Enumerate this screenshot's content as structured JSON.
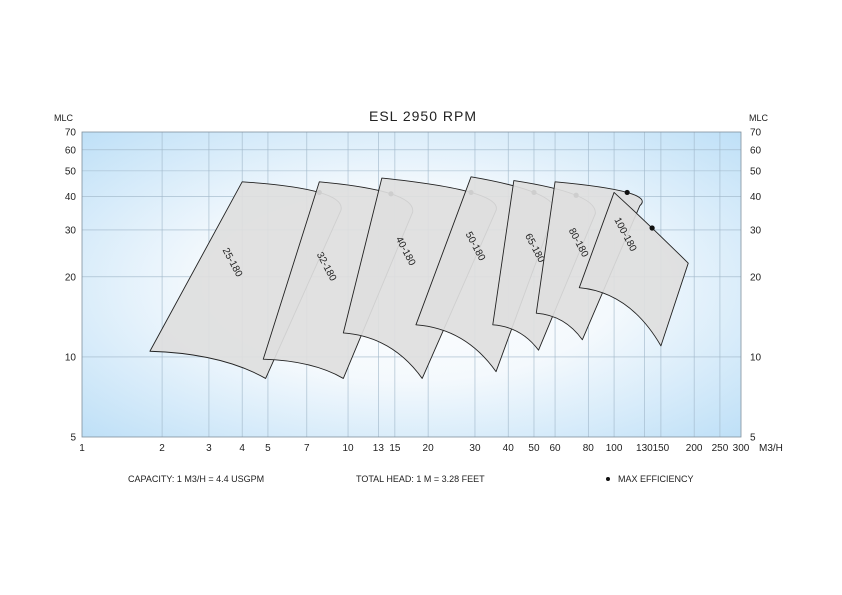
{
  "chart_data": {
    "type": "area",
    "title": "ESL 2950 RPM",
    "left_axis_label": "MLC",
    "right_axis_label": "MLC",
    "x_axis_label": "M3/H",
    "x_scale": "log",
    "y_scale": "log",
    "xlim": [
      1,
      300
    ],
    "ylim": [
      5,
      70
    ],
    "grid": true,
    "x_ticks": [
      1,
      2,
      3,
      4,
      5,
      7,
      10,
      13,
      15,
      20,
      30,
      40,
      50,
      60,
      80,
      100,
      130,
      150,
      200,
      250,
      300
    ],
    "y_ticks": [
      5,
      10,
      20,
      30,
      40,
      50,
      60,
      70
    ],
    "series": [
      {
        "name": "25-180",
        "q_max_head": 4.0,
        "h_max": 45.5,
        "q_bep": 7.8,
        "h_bep": 41.5,
        "q_top_end": 9.4,
        "h_top_end": 35.5,
        "q_min": 1.8,
        "h_bottom_start": 10.5,
        "q_bottom_end": 4.9,
        "h_bottom_end": 8.3
      },
      {
        "name": "32-180",
        "q_max_head": 7.8,
        "h_max": 45.5,
        "q_bep": 14.5,
        "h_bep": 41.0,
        "q_top_end": 17.5,
        "h_top_end": 35.0,
        "q_min": 4.8,
        "h_bottom_start": 9.8,
        "q_bottom_end": 9.6,
        "h_bottom_end": 8.3
      },
      {
        "name": "40-180",
        "q_max_head": 13.4,
        "h_max": 47.0,
        "q_bep": 29.0,
        "h_bep": 41.5,
        "q_top_end": 36.0,
        "h_top_end": 35.5,
        "q_min": 9.6,
        "h_bottom_start": 12.3,
        "q_bottom_end": 19.0,
        "h_bottom_end": 8.3
      },
      {
        "name": "50-180",
        "q_max_head": 29.0,
        "h_max": 47.5,
        "q_bep": 50.0,
        "h_bep": 41.5,
        "q_top_end": 60.0,
        "h_top_end": 35.5,
        "q_min": 18.0,
        "h_bottom_start": 13.2,
        "q_bottom_end": 36.0,
        "h_bottom_end": 8.8
      },
      {
        "name": "65-180",
        "q_max_head": 42.0,
        "h_max": 46.0,
        "q_bep": 72.0,
        "h_bep": 40.5,
        "q_top_end": 85.0,
        "h_top_end": 34.5,
        "q_min": 35.0,
        "h_bottom_start": 13.2,
        "q_bottom_end": 52.0,
        "h_bottom_end": 10.6
      },
      {
        "name": "80-180",
        "q_max_head": 60.0,
        "h_max": 45.5,
        "q_bep": 112.0,
        "h_bep": 41.5,
        "q_top_end": 125.0,
        "h_top_end": 37.0,
        "q_min": 51.0,
        "h_bottom_start": 14.6,
        "q_bottom_end": 76.0,
        "h_bottom_end": 11.6
      },
      {
        "name": "100-180",
        "q_max_head": 100.0,
        "h_max": 41.5,
        "q_bep": 139.0,
        "h_bep": 30.5,
        "q_top_end": 190.0,
        "h_top_end": 22.5,
        "q_min": 74.0,
        "h_bottom_start": 18.2,
        "q_bottom_end": 150.0,
        "h_bottom_end": 11.0
      }
    ]
  },
  "footer": {
    "capacity": "CAPACITY: 1 M3/H = 4.4 USGPM",
    "head": "TOTAL HEAD: 1 M = 3.28 FEET",
    "legend": "MAX EFFICIENCY"
  },
  "colors": {
    "plot_bg_edge": "#bfe0f7",
    "plot_bg_center": "#ffffff",
    "grid": "#9fb6c8",
    "curve_fill": "#dedede",
    "curve_stroke": "#222222",
    "bep_dot": "#111111"
  }
}
